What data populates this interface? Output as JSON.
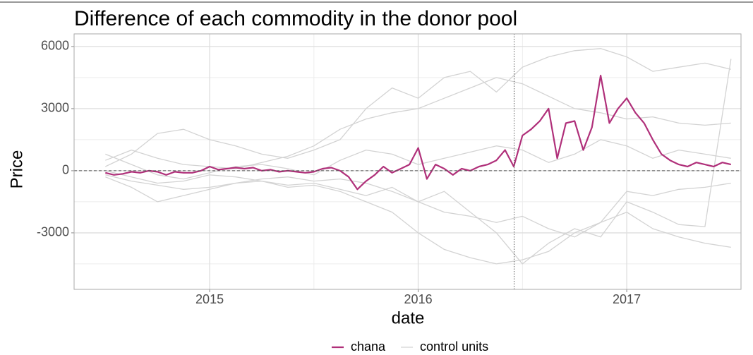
{
  "chart_data": {
    "type": "line",
    "title": "Difference of each commodity in the donor pool",
    "x_label": "date",
    "y_label": "Price",
    "xlim": [
      2014.35,
      2017.548
    ],
    "ylim": [
      -5730,
      6610
    ],
    "xticks": [
      2015,
      2016,
      2017
    ],
    "yticks": [
      6000,
      3000,
      0,
      -3000
    ],
    "x_minor_grid": [
      2015.5,
      2016.5
    ],
    "y_minor_grid": [
      4500,
      1500,
      -1500,
      -4500
    ],
    "hline": 0,
    "vline": 2016.46,
    "grid": true,
    "legend": "bottom",
    "series": [
      {
        "name": "chana",
        "color": "#b0307a",
        "x": [
          2014.5,
          2014.5417,
          2014.5833,
          2014.625,
          2014.6667,
          2014.7083,
          2014.75,
          2014.7917,
          2014.8333,
          2014.875,
          2014.9167,
          2014.9583,
          2015,
          2015.0417,
          2015.0833,
          2015.125,
          2015.1667,
          2015.2083,
          2015.25,
          2015.2917,
          2015.3333,
          2015.375,
          2015.4167,
          2015.4583,
          2015.5,
          2015.5417,
          2015.5833,
          2015.625,
          2015.6667,
          2015.7083,
          2015.75,
          2015.7917,
          2015.8333,
          2015.875,
          2015.9167,
          2015.9583,
          2016,
          2016.0417,
          2016.0833,
          2016.125,
          2016.1667,
          2016.2083,
          2016.25,
          2016.2917,
          2016.3333,
          2016.375,
          2016.4167,
          2016.4583,
          2016.5,
          2016.5417,
          2016.5833,
          2016.625,
          2016.6667,
          2016.7083,
          2016.75,
          2016.7917,
          2016.8333,
          2016.875,
          2016.9167,
          2016.9583,
          2017,
          2017.0417,
          2017.0833,
          2017.125,
          2017.1667,
          2017.2083,
          2017.25,
          2017.2917,
          2017.3333,
          2017.375,
          2017.4167,
          2017.4583,
          2017.5
        ],
        "values": [
          -100,
          -200,
          -150,
          -50,
          -100,
          0,
          -50,
          -200,
          -50,
          -100,
          -100,
          0,
          200,
          50,
          100,
          150,
          100,
          150,
          0,
          50,
          -50,
          0,
          -50,
          -100,
          -50,
          100,
          150,
          0,
          -300,
          -900,
          -500,
          -200,
          200,
          -100,
          100,
          300,
          1100,
          -400,
          300,
          100,
          -200,
          100,
          0,
          200,
          300,
          500,
          1000,
          200,
          1700,
          2000,
          2400,
          3000,
          600,
          2300,
          2400,
          1000,
          2100,
          4600,
          2300,
          3000,
          3500,
          2800,
          2300,
          1500,
          800,
          500,
          300,
          200,
          400,
          300,
          200,
          400,
          300
        ]
      },
      {
        "name": "control units",
        "color": "#d3d3d3",
        "x": [
          2014.5,
          2014.625,
          2014.75,
          2014.875,
          2015,
          2015.125,
          2015.25,
          2015.375,
          2015.5,
          2015.625,
          2015.75,
          2015.875,
          2016,
          2016.125,
          2016.25,
          2016.375,
          2016.5,
          2016.625,
          2016.75,
          2016.875,
          2017,
          2017.125,
          2017.25,
          2017.375,
          2017.5
        ],
        "lines": [
          [
            200,
            800,
            1800,
            2000,
            1500,
            1200,
            800,
            600,
            1000,
            1500,
            3000,
            4000,
            3500,
            4500,
            4800,
            3800,
            5000,
            5500,
            5800,
            5900,
            5500,
            4800,
            5000,
            5200,
            4900
          ],
          [
            -300,
            -800,
            -1500,
            -1200,
            -900,
            -600,
            -500,
            -800,
            -700,
            -1000,
            -1500,
            -2000,
            -3000,
            -3800,
            -4200,
            -4500,
            -4300,
            -3900,
            -3000,
            -2500,
            -2000,
            -2800,
            -3200,
            -3500,
            -3700
          ],
          [
            500,
            1000,
            600,
            300,
            200,
            100,
            400,
            700,
            1200,
            2000,
            2500,
            2800,
            3000,
            3500,
            4000,
            4500,
            4200,
            3600,
            3000,
            2800,
            2500,
            2600,
            2300,
            2200,
            2300
          ],
          [
            -200,
            -500,
            -700,
            -900,
            -800,
            -600,
            -400,
            -300,
            -500,
            -400,
            -600,
            -1000,
            -1500,
            -2000,
            -2200,
            -2500,
            -2200,
            -2800,
            -3200,
            -2500,
            -1000,
            -1200,
            -900,
            -800,
            -600
          ],
          [
            800,
            300,
            -200,
            -400,
            -100,
            200,
            300,
            100,
            -200,
            500,
            1000,
            800,
            300,
            600,
            900,
            1200,
            1000,
            400,
            800,
            1500,
            1200,
            600,
            1000,
            800,
            600
          ],
          [
            0,
            -300,
            -600,
            -500,
            -200,
            -300,
            -500,
            -700,
            -600,
            -900,
            -1200,
            -800,
            -1500,
            -1000,
            -2000,
            -3000,
            -4500,
            -3500,
            -2800,
            -3200,
            -1500,
            -2000,
            -2600,
            -2700,
            5400
          ]
        ]
      }
    ]
  }
}
